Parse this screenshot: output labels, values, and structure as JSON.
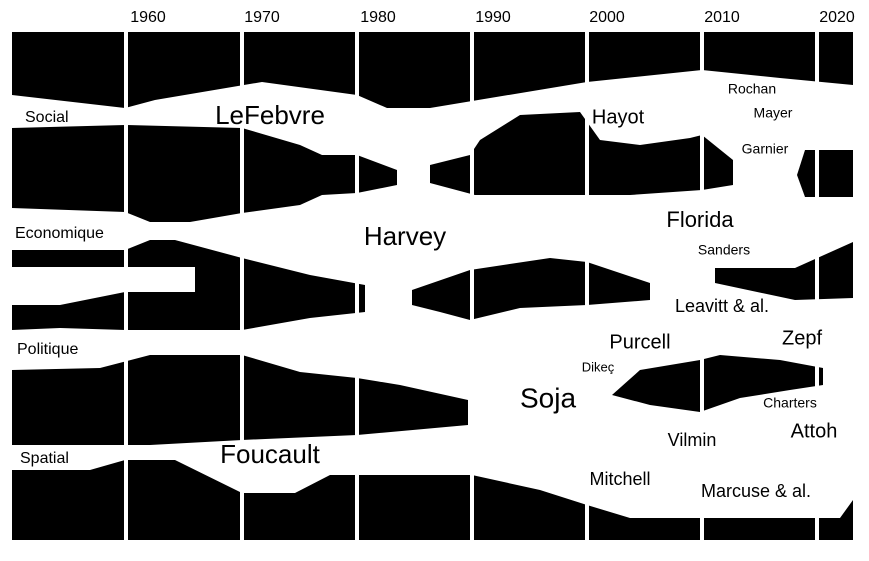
{
  "decades": [
    "1960",
    "1970",
    "1980",
    "1990",
    "2000",
    "2010",
    "2020"
  ],
  "themes": [
    "Social",
    "Economique",
    "Politique",
    "Spatial"
  ],
  "authors": [
    "LeFebvre",
    "Hayot",
    "Rochan",
    "Mayer",
    "Garnier",
    "Harvey",
    "Florida",
    "Sanders",
    "Leavitt & al.",
    "Purcell",
    "Zepf",
    "Dikeç",
    "Soja",
    "Charters",
    "Attoh",
    "Vilmin",
    "Foucault",
    "Mitchell",
    "Marcuse & al."
  ]
}
